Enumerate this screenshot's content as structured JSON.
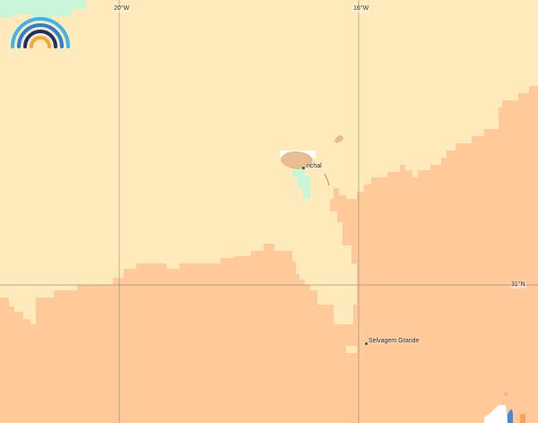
{
  "map": {
    "graticule": {
      "longitudes": [
        "20°W",
        "16°W"
      ],
      "latitudes": [
        "31°N"
      ]
    },
    "places": [
      {
        "name": "Funchal",
        "shown": "nchal",
        "kind": "city"
      },
      {
        "name": "Selvagem Grande",
        "shown": "Selvagem Grande",
        "kind": "island"
      }
    ],
    "colors": {
      "ocean_shallow": "#ffeabc",
      "ocean_deep": "#ffc99a",
      "land_green": "#c9f5d8",
      "island_land": "#e9bd92",
      "island_label_bg": "#ffffff",
      "marker_dot": "#2c6a2c",
      "grid": "#8a8a7a"
    },
    "logo": {
      "icon": "rainbow-arc-logo",
      "arc_colors": [
        "#2b7fd6",
        "#3fb5e3",
        "#1b2f6e",
        "#f2a83a"
      ]
    }
  }
}
